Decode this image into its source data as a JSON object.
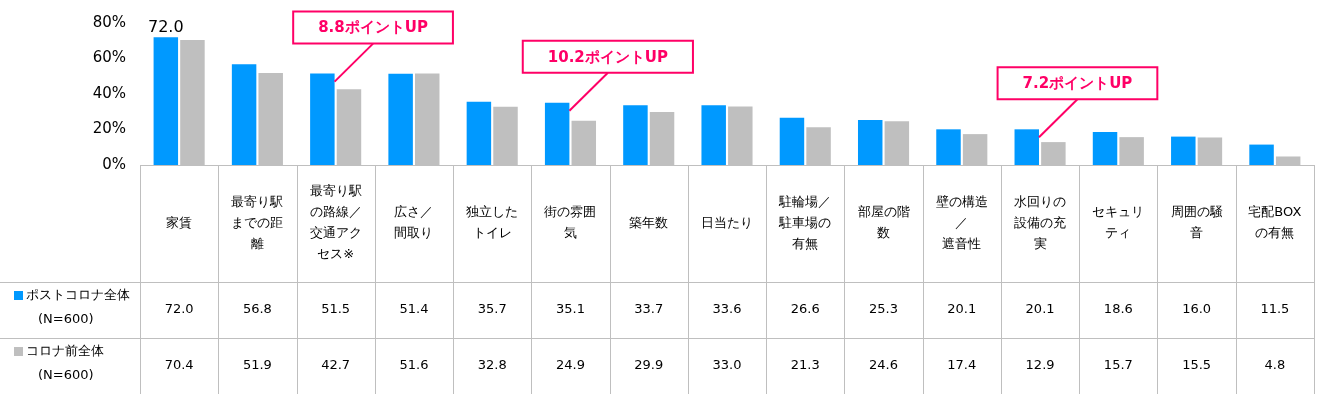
{
  "chart_data": {
    "type": "bar",
    "categories": [
      "家賃",
      "最寄り駅までの距離",
      "最寄り駅の路線／交通アクセス※",
      "広さ／間取り",
      "独立したトイレ",
      "街の雰囲気",
      "築年数",
      "日当たり",
      "駐輪場／駐車場の有無",
      "部屋の階数",
      "壁の構造／遮音性",
      "水回りの設備の充実",
      "セキュリティ",
      "周囲の騒音",
      "宅配BOXの有無"
    ],
    "series": [
      {
        "name": "ポストコロナ全体(N=600)",
        "color": "#0099ff",
        "values": [
          72.0,
          56.8,
          51.5,
          51.4,
          35.7,
          35.1,
          33.7,
          33.6,
          26.6,
          25.3,
          20.1,
          20.1,
          18.6,
          16.0,
          11.5
        ],
        "value_labels": [
          "72.0",
          "56.8",
          "51.5",
          "51.4",
          "35.7",
          "35.1",
          "33.7",
          "33.6",
          "26.6",
          "25.3",
          "20.1",
          "20.1",
          "18.6",
          "16.0",
          "11.5"
        ]
      },
      {
        "name": "コロナ前全体(N=600)",
        "color": "#bfbfbf",
        "values": [
          70.4,
          51.9,
          42.7,
          51.6,
          32.8,
          24.9,
          29.9,
          33.0,
          21.3,
          24.6,
          17.4,
          12.9,
          15.7,
          15.5,
          4.8
        ],
        "value_labels": [
          "70.4",
          "51.9",
          "42.7",
          "51.6",
          "32.8",
          "24.9",
          "29.9",
          "33.0",
          "21.3",
          "24.6",
          "17.4",
          "12.9",
          "15.7",
          "15.5",
          "4.8"
        ]
      }
    ],
    "ylim": [
      0,
      80
    ],
    "yticks": [
      {
        "value": 0,
        "label": "0%"
      },
      {
        "value": 20,
        "label": "20%"
      },
      {
        "value": 40,
        "label": "40%"
      },
      {
        "value": 60,
        "label": "60%"
      },
      {
        "value": 80,
        "label": "80%"
      }
    ],
    "legend": "bottom",
    "annotations": [
      {
        "text": "72.0",
        "x": "家賃",
        "y": 72.0
      },
      {
        "text": "8.8ポイントUP",
        "x": "最寄り駅の路線／交通アクセス※",
        "y": 51.5
      },
      {
        "text": "10.2ポイントUP",
        "x": "街の雰囲気",
        "y": 35.1
      },
      {
        "text": "7.2ポイントUP",
        "x": "水回りの設備の充実",
        "y": 20.1
      }
    ]
  }
}
